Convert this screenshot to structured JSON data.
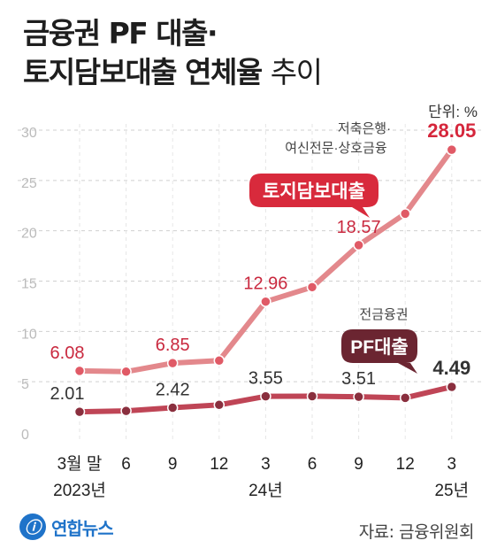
{
  "header": {
    "title_line1": "금융권 PF 대출·",
    "title_line2": "토지담보대출 연체율",
    "title_suffix": "추이"
  },
  "unit_label": "단위: %",
  "source": "자료: 금융위원회",
  "logo_text": "연합뉴스",
  "logo_mark": "ⓘ",
  "colors": {
    "land_line": "#e3888c",
    "land_marker": "#e05a66",
    "land_label": "#c9283e",
    "land_last_label": "#d5263b",
    "land_badge": "#d82a3c",
    "pf_line": "#bf4556",
    "pf_marker": "#8a2f3e",
    "pf_label": "#333333",
    "pf_badge": "#6b2531",
    "grid": "#d0d0d0",
    "tick": "#bbbbbb",
    "axis_text": "#222222"
  },
  "chart_data": {
    "type": "line",
    "ylim": [
      0,
      30
    ],
    "yticks": [
      0,
      5,
      10,
      15,
      20,
      25,
      30
    ],
    "categories": [
      "3월 말",
      "6",
      "9",
      "12",
      "3",
      "6",
      "9",
      "12",
      "3"
    ],
    "year_labels": [
      {
        "index": 0,
        "label": "2023년"
      },
      {
        "index": 4,
        "label": "24년"
      },
      {
        "index": 8,
        "label": "25년"
      }
    ],
    "series": [
      {
        "name": "토지담보대출",
        "note": "저축은행·\n여신전문·상호금융",
        "values": [
          6.08,
          6.0,
          6.85,
          7.1,
          12.96,
          14.4,
          18.57,
          21.7,
          28.05
        ],
        "labels": [
          "6.08",
          "",
          "6.85",
          "",
          "12.96",
          "",
          "18.57",
          "",
          "28.05"
        ]
      },
      {
        "name": "PF대출",
        "note": "전금융권",
        "values": [
          2.01,
          2.1,
          2.42,
          2.7,
          3.55,
          3.56,
          3.51,
          3.4,
          4.49
        ],
        "labels": [
          "2.01",
          "",
          "2.42",
          "",
          "3.55",
          "",
          "3.51",
          "",
          "4.49"
        ]
      }
    ]
  }
}
